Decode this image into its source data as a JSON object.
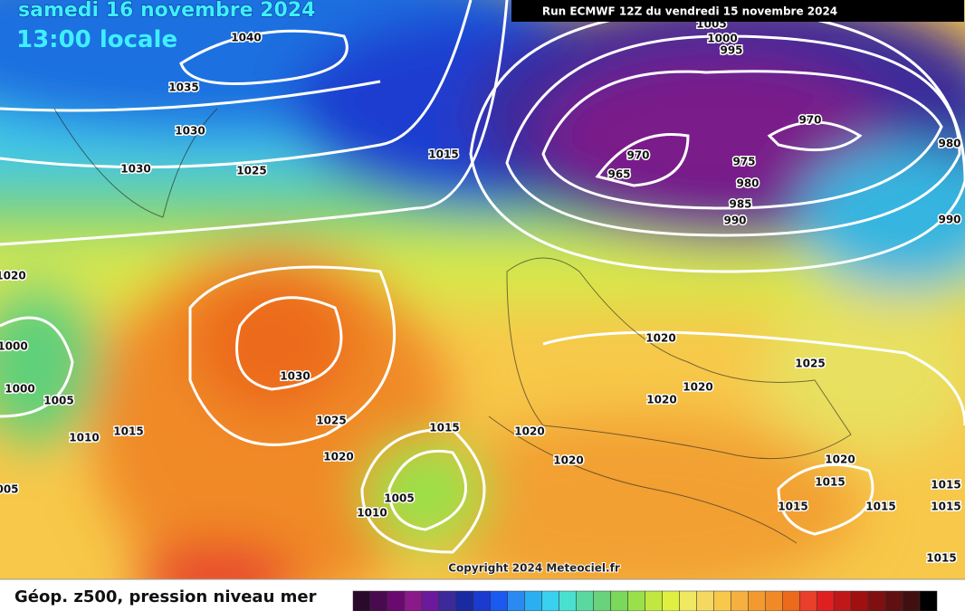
{
  "header": {
    "date": "samedi 16 novembre 2024",
    "time": "13:00 locale",
    "run": "Run ECMWF 12Z du vendredi 15 novembre 2024"
  },
  "isobar_labels": [
    "1040",
    "1035",
    "1030",
    "1030",
    "1025",
    "1015",
    "1005",
    "1000",
    "995",
    "970",
    "970",
    "965",
    "975",
    "980",
    "985",
    "990",
    "980",
    "990",
    "1020",
    "1000",
    "1000",
    "1005",
    "1010",
    "1015",
    "1030",
    "1025",
    "1020",
    "1015",
    "1005",
    "1010",
    "1020",
    "1025",
    "1020",
    "1020",
    "1020",
    "1020",
    "1020",
    "1015",
    "1015",
    "1015",
    "1015",
    "1015",
    "1015",
    "005"
  ],
  "copyright": "Copyright 2024 Meteociel.fr",
  "legend": {
    "caption": "Géop. z500, pression niveau mer"
  }
}
